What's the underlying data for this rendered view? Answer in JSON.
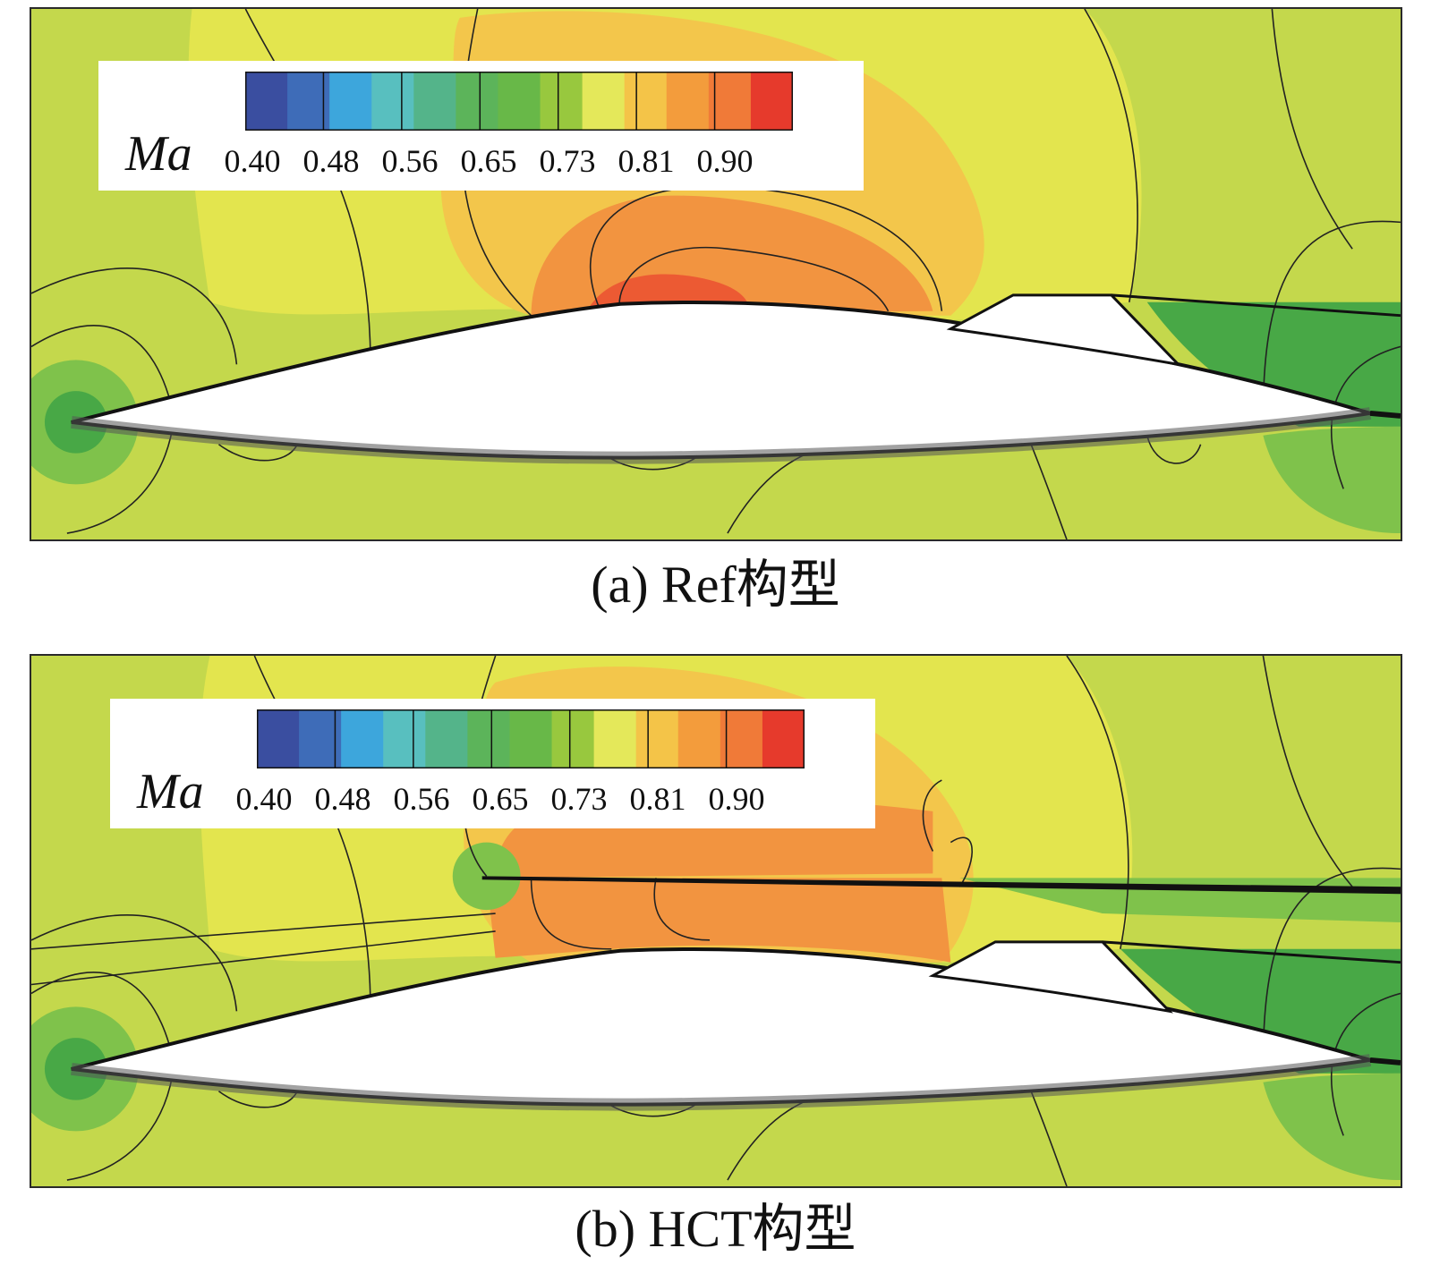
{
  "colorbar": {
    "variable": "Ma",
    "ticks": [
      "0.40",
      "0.48",
      "0.56",
      "0.65",
      "0.73",
      "0.81",
      "0.90"
    ],
    "colors": [
      "#3a4ea0",
      "#3e6cb8",
      "#3da6dc",
      "#58bfbf",
      "#54b48a",
      "#5cb45a",
      "#68b848",
      "#98c83e",
      "#e4e85a",
      "#f4c448",
      "#f39c3c",
      "#f07a38",
      "#e63a2c"
    ]
  },
  "field_colors": {
    "background": "#c4d84c",
    "yellow": "#e3e54e",
    "light_orange": "#f3c64b",
    "orange": "#f29440",
    "red": "#ec5a33",
    "green": "#7fc24b",
    "dark_green": "#48a846"
  },
  "panels": [
    {
      "caption": "(a) Ref构型"
    },
    {
      "caption": "(b) HCT构型"
    }
  ]
}
